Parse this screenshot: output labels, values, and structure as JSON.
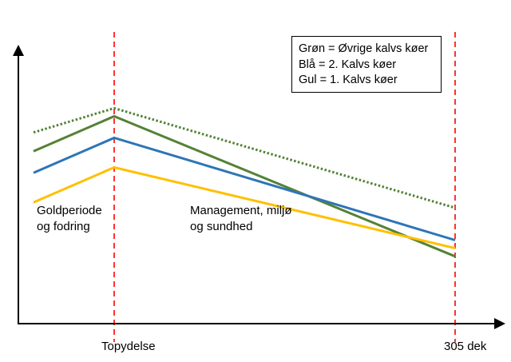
{
  "legend": [
    "Grøn = Øvrige kalvs køer",
    "Blå = 2. Kalvs køer",
    "Gul = 1. Kalvs køer"
  ],
  "regions": {
    "left": "Goldperiode\nog fodring",
    "right": "Management, miljø\nog sundhed"
  },
  "x_ticks": [
    "Topydelse",
    "305 dek"
  ],
  "colors": {
    "green": "#548235",
    "blue": "#2e75b6",
    "yellow": "#ffc000",
    "marker": "#ff0000",
    "axis": "#000000"
  },
  "chart_data": {
    "type": "line",
    "categories": [
      "",
      "Topydelse",
      "305 dek"
    ],
    "series": [
      {
        "key": "green_dotted",
        "color": "green",
        "style": "dotted",
        "values": [
          0.71,
          0.8,
          0.43
        ]
      },
      {
        "key": "green",
        "color": "green",
        "style": "solid",
        "values": [
          0.64,
          0.77,
          0.25
        ]
      },
      {
        "key": "blue",
        "color": "blue",
        "style": "solid",
        "values": [
          0.56,
          0.69,
          0.31
        ]
      },
      {
        "key": "yellow",
        "color": "yellow",
        "style": "solid",
        "values": [
          0.45,
          0.58,
          0.28
        ]
      }
    ],
    "ylim": [
      0,
      1
    ]
  }
}
